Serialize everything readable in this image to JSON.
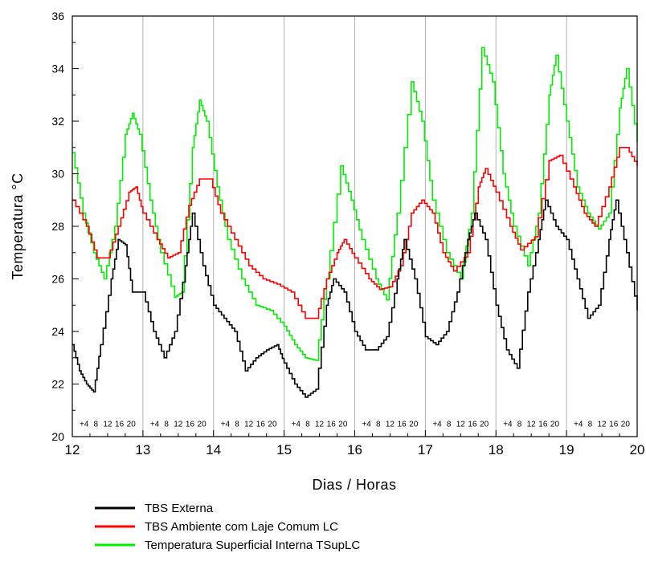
{
  "chart_data": {
    "type": "line",
    "xlabel": "Dias / Horas",
    "ylabel": "Temperatura °C",
    "xlim": [
      12,
      20
    ],
    "ylim": [
      20,
      36
    ],
    "x_ticks": [
      "12",
      "13",
      "14",
      "15",
      "16",
      "17",
      "18",
      "19",
      "20"
    ],
    "y_ticks": [
      "20",
      "22",
      "24",
      "26",
      "28",
      "30",
      "32",
      "34",
      "36"
    ],
    "hour_labels": [
      "4",
      "8",
      "12",
      "16",
      "20"
    ],
    "grid": true,
    "legend_position": "bottom",
    "series": [
      {
        "name": "TBS Externa",
        "color": "#000000",
        "x": [
          12.0,
          12.1,
          12.2,
          12.3,
          12.4,
          12.55,
          12.65,
          12.75,
          12.85,
          13.0,
          13.15,
          13.3,
          13.45,
          13.6,
          13.7,
          13.85,
          14.0,
          14.15,
          14.3,
          14.45,
          14.6,
          14.75,
          14.9,
          15.0,
          15.15,
          15.3,
          15.45,
          15.6,
          15.7,
          15.85,
          16.0,
          16.15,
          16.3,
          16.45,
          16.6,
          16.7,
          16.85,
          17.0,
          17.15,
          17.3,
          17.45,
          17.6,
          17.7,
          17.85,
          18.0,
          18.15,
          18.3,
          18.45,
          18.6,
          18.7,
          18.85,
          19.0,
          19.15,
          19.3,
          19.45,
          19.6,
          19.7,
          19.85,
          20.0
        ],
        "y": [
          23.5,
          22.5,
          22.0,
          21.7,
          23.5,
          26.0,
          27.5,
          27.3,
          25.5,
          25.5,
          24.0,
          23.0,
          24.0,
          26.5,
          28.5,
          26.5,
          25.0,
          24.5,
          24.0,
          22.5,
          23.0,
          23.3,
          23.5,
          22.8,
          22.0,
          21.5,
          21.8,
          25.0,
          26.0,
          25.5,
          24.0,
          23.3,
          23.3,
          23.8,
          26.0,
          27.5,
          26.0,
          23.8,
          23.5,
          24.0,
          25.5,
          27.5,
          28.5,
          27.5,
          25.0,
          23.3,
          22.6,
          25.5,
          27.5,
          29.0,
          28.0,
          27.5,
          26.0,
          24.5,
          25.0,
          27.5,
          29.0,
          27.0,
          24.8
        ]
      },
      {
        "name": "TBS Ambiente com Laje Comum  LC",
        "color": "#ff0000",
        "x": [
          12.0,
          12.2,
          12.35,
          12.5,
          12.65,
          12.8,
          12.9,
          13.0,
          13.2,
          13.35,
          13.5,
          13.65,
          13.8,
          13.95,
          14.1,
          14.3,
          14.5,
          14.7,
          14.9,
          15.1,
          15.3,
          15.45,
          15.6,
          15.75,
          15.85,
          16.0,
          16.2,
          16.35,
          16.5,
          16.65,
          16.8,
          16.95,
          17.1,
          17.25,
          17.4,
          17.6,
          17.75,
          17.85,
          18.0,
          18.2,
          18.35,
          18.55,
          18.75,
          18.9,
          19.1,
          19.25,
          19.4,
          19.6,
          19.75,
          19.85,
          20.0
        ],
        "y": [
          29.0,
          28.0,
          26.8,
          26.8,
          28.0,
          29.3,
          29.5,
          28.5,
          27.5,
          26.8,
          27.0,
          28.8,
          29.8,
          29.8,
          28.5,
          27.5,
          26.5,
          26.0,
          25.8,
          25.5,
          24.5,
          24.5,
          26.0,
          27.0,
          27.5,
          26.8,
          26.0,
          25.6,
          25.7,
          26.5,
          28.5,
          29.0,
          28.5,
          27.0,
          26.3,
          27.0,
          29.5,
          30.2,
          29.3,
          28.0,
          27.1,
          27.6,
          30.5,
          30.7,
          29.5,
          28.5,
          28.0,
          29.5,
          31.0,
          31.0,
          30.3
        ]
      },
      {
        "name": "Temperatura Superficial Interna TSupLC",
        "color": "#00ee00",
        "x": [
          12.0,
          12.15,
          12.3,
          12.45,
          12.6,
          12.75,
          12.85,
          12.95,
          13.1,
          13.25,
          13.45,
          13.55,
          13.7,
          13.8,
          13.9,
          14.05,
          14.2,
          14.4,
          14.6,
          14.8,
          15.0,
          15.15,
          15.3,
          15.45,
          15.6,
          15.8,
          15.95,
          16.1,
          16.3,
          16.45,
          16.6,
          16.8,
          16.95,
          17.1,
          17.3,
          17.5,
          17.65,
          17.8,
          17.95,
          18.1,
          18.25,
          18.45,
          18.6,
          18.75,
          18.85,
          19.0,
          19.15,
          19.3,
          19.45,
          19.6,
          19.75,
          19.85,
          20.0
        ],
        "y": [
          30.8,
          28.5,
          27.0,
          26.0,
          28.0,
          31.5,
          32.3,
          31.5,
          29.0,
          27.0,
          25.3,
          25.5,
          31.0,
          32.8,
          32.0,
          29.5,
          27.5,
          26.0,
          25.0,
          24.8,
          24.2,
          23.5,
          23.0,
          22.9,
          26.0,
          30.3,
          29.0,
          27.5,
          26.0,
          25.2,
          28.5,
          33.5,
          32.0,
          29.0,
          27.0,
          26.0,
          28.5,
          34.8,
          33.5,
          30.0,
          28.0,
          26.5,
          28.5,
          33.0,
          34.5,
          32.0,
          29.5,
          28.5,
          27.9,
          28.5,
          32.5,
          34.0,
          31.2
        ]
      }
    ]
  }
}
